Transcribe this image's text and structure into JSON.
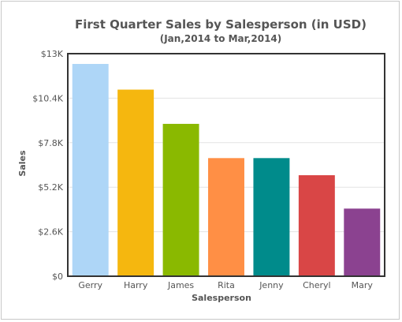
{
  "chart_data": {
    "type": "bar",
    "title": "First Quarter Sales by Salesperson (in USD)",
    "subtitle": "(Jan,2014 to Mar,2014)",
    "xlabel": "Salesperson",
    "ylabel": "Sales",
    "categories": [
      "Gerry",
      "Harry",
      "James",
      "Rita",
      "Jenny",
      "Cheryl",
      "Mary"
    ],
    "values": [
      12400,
      10900,
      8900,
      6900,
      6900,
      5900,
      3950
    ],
    "colors": [
      "#aed6f7",
      "#f5b70f",
      "#8ab900",
      "#ff8f45",
      "#008b8b",
      "#d94646",
      "#8b4290"
    ],
    "yticks": [
      0,
      2600,
      5200,
      7800,
      10400,
      13000
    ],
    "ytick_labels": [
      "$0",
      "$2.6K",
      "$5.2K",
      "$7.8K",
      "$10.4K",
      "$13K"
    ],
    "ylim": [
      0,
      13000
    ],
    "grid": true,
    "legend": "none"
  }
}
